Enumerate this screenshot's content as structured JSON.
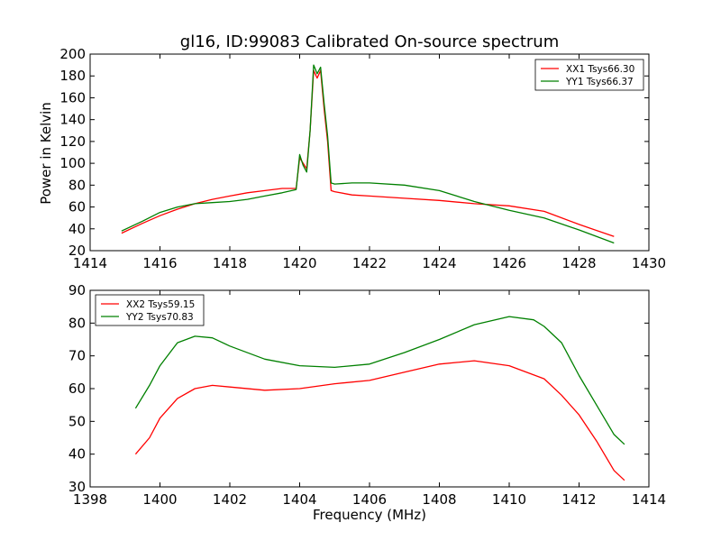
{
  "figure": {
    "title": "gl16, ID:99083 Calibrated On-source spectrum",
    "xlabel": "Frequency (MHz)",
    "ylabel": "Power in Kelvin"
  },
  "chart_data": [
    {
      "type": "line",
      "xlim": [
        1414,
        1430
      ],
      "ylim": [
        20,
        200
      ],
      "xticks": [
        1414,
        1416,
        1418,
        1420,
        1422,
        1424,
        1426,
        1428,
        1430
      ],
      "yticks": [
        20,
        40,
        60,
        80,
        100,
        120,
        140,
        160,
        180,
        200
      ],
      "grid": false,
      "legend_position": "top-right",
      "series": [
        {
          "name": "XX1 Tsys66.30",
          "color": "#ff0000",
          "points": [
            [
              1414.9,
              36
            ],
            [
              1415.5,
              45
            ],
            [
              1416,
              52
            ],
            [
              1416.5,
              58
            ],
            [
              1417,
              63
            ],
            [
              1417.5,
              67
            ],
            [
              1418,
              70
            ],
            [
              1418.5,
              73
            ],
            [
              1419,
              75
            ],
            [
              1419.5,
              77
            ],
            [
              1419.9,
              77
            ],
            [
              1420,
              105
            ],
            [
              1420.1,
              100
            ],
            [
              1420.2,
              95
            ],
            [
              1420.3,
              130
            ],
            [
              1420.4,
              185
            ],
            [
              1420.5,
              178
            ],
            [
              1420.6,
              185
            ],
            [
              1420.7,
              150
            ],
            [
              1420.8,
              120
            ],
            [
              1420.9,
              75
            ],
            [
              1421,
              74
            ],
            [
              1421.5,
              71
            ],
            [
              1422,
              70
            ],
            [
              1423,
              68
            ],
            [
              1424,
              66
            ],
            [
              1425,
              63
            ],
            [
              1426,
              61
            ],
            [
              1427,
              56
            ],
            [
              1428,
              44
            ],
            [
              1429,
              33
            ]
          ]
        },
        {
          "name": "YY1 Tsys66.37",
          "color": "#008000",
          "points": [
            [
              1414.9,
              38
            ],
            [
              1415.5,
              47
            ],
            [
              1416,
              55
            ],
            [
              1416.5,
              60
            ],
            [
              1417,
              63
            ],
            [
              1417.5,
              64
            ],
            [
              1418,
              65
            ],
            [
              1418.5,
              67
            ],
            [
              1419,
              70
            ],
            [
              1419.5,
              73
            ],
            [
              1419.9,
              76
            ],
            [
              1420,
              108
            ],
            [
              1420.1,
              98
            ],
            [
              1420.2,
              92
            ],
            [
              1420.3,
              130
            ],
            [
              1420.4,
              190
            ],
            [
              1420.5,
              182
            ],
            [
              1420.6,
              188
            ],
            [
              1420.7,
              155
            ],
            [
              1420.8,
              125
            ],
            [
              1420.9,
              82
            ],
            [
              1421,
              81
            ],
            [
              1421.5,
              82
            ],
            [
              1422,
              82
            ],
            [
              1423,
              80
            ],
            [
              1424,
              75
            ],
            [
              1425,
              65
            ],
            [
              1426,
              57
            ],
            [
              1427,
              50
            ],
            [
              1428,
              39
            ],
            [
              1429,
              27
            ]
          ]
        }
      ]
    },
    {
      "type": "line",
      "xlim": [
        1398,
        1414
      ],
      "ylim": [
        30,
        90
      ],
      "xticks": [
        1398,
        1400,
        1402,
        1404,
        1406,
        1408,
        1410,
        1412,
        1414
      ],
      "yticks": [
        30,
        40,
        50,
        60,
        70,
        80,
        90
      ],
      "grid": false,
      "legend_position": "top-left",
      "series": [
        {
          "name": "XX2 Tsys59.15",
          "color": "#ff0000",
          "points": [
            [
              1399.3,
              40
            ],
            [
              1399.7,
              45
            ],
            [
              1400,
              51
            ],
            [
              1400.5,
              57
            ],
            [
              1401,
              60
            ],
            [
              1401.5,
              61
            ],
            [
              1402,
              60.5
            ],
            [
              1403,
              59.5
            ],
            [
              1404,
              60
            ],
            [
              1405,
              61.5
            ],
            [
              1406,
              62.5
            ],
            [
              1407,
              65
            ],
            [
              1408,
              67.5
            ],
            [
              1409,
              68.5
            ],
            [
              1410,
              67
            ],
            [
              1411,
              63
            ],
            [
              1411.5,
              58
            ],
            [
              1412,
              52
            ],
            [
              1412.5,
              44
            ],
            [
              1413,
              35
            ],
            [
              1413.3,
              32
            ]
          ]
        },
        {
          "name": "YY2 Tsys70.83",
          "color": "#008000",
          "points": [
            [
              1399.3,
              54
            ],
            [
              1399.7,
              61
            ],
            [
              1400,
              67
            ],
            [
              1400.5,
              74
            ],
            [
              1401,
              76
            ],
            [
              1401.5,
              75.5
            ],
            [
              1402,
              73
            ],
            [
              1403,
              69
            ],
            [
              1404,
              67
            ],
            [
              1405,
              66.5
            ],
            [
              1406,
              67.5
            ],
            [
              1407,
              71
            ],
            [
              1408,
              75
            ],
            [
              1409,
              79.5
            ],
            [
              1410,
              82
            ],
            [
              1410.7,
              81
            ],
            [
              1411,
              79
            ],
            [
              1411.5,
              74
            ],
            [
              1412,
              64
            ],
            [
              1412.5,
              55
            ],
            [
              1413,
              46
            ],
            [
              1413.3,
              43
            ]
          ]
        }
      ]
    }
  ]
}
